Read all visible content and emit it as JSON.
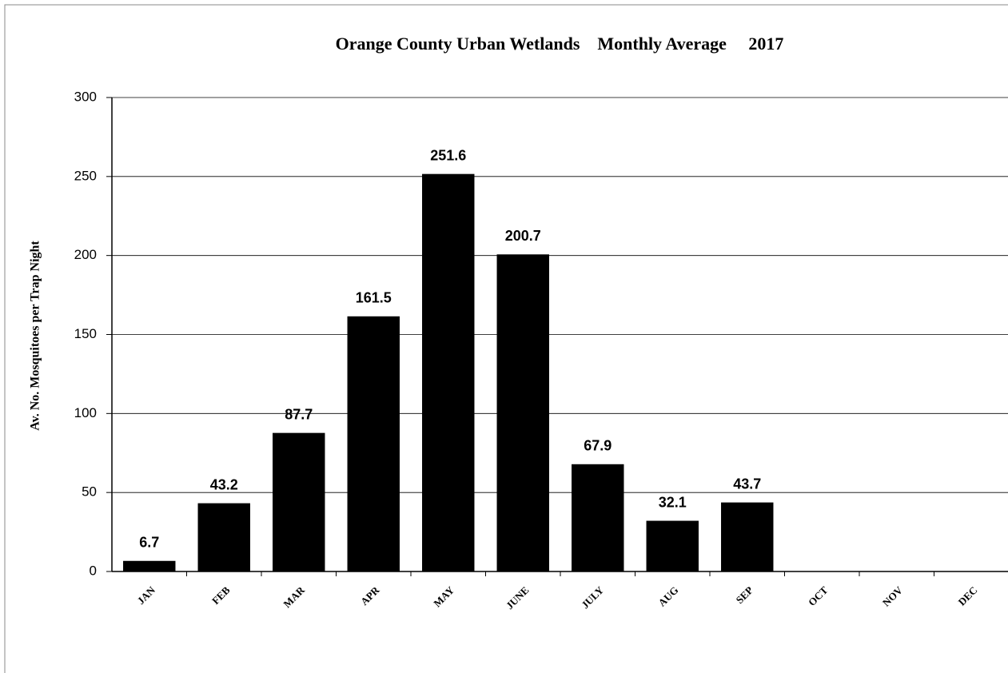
{
  "chart_data": {
    "type": "bar",
    "title": "Orange County Urban Wetlands    Monthly Average     2017",
    "y_label": "Av. No. Mosquitoes per Trap Night",
    "categories": [
      "JAN",
      "FEB",
      "MAR",
      "APR",
      "MAY",
      "JUNE",
      "JULY",
      "AUG",
      "SEP",
      "OCT",
      "NOV",
      "DEC"
    ],
    "values": [
      6.7,
      43.2,
      87.7,
      161.5,
      251.6,
      200.7,
      67.9,
      32.1,
      43.7,
      null,
      null,
      null
    ],
    "color": "#000000",
    "ylim": [
      0,
      300
    ],
    "yticks": [
      0,
      50,
      100,
      150,
      200,
      250,
      300
    ],
    "grid": true
  }
}
